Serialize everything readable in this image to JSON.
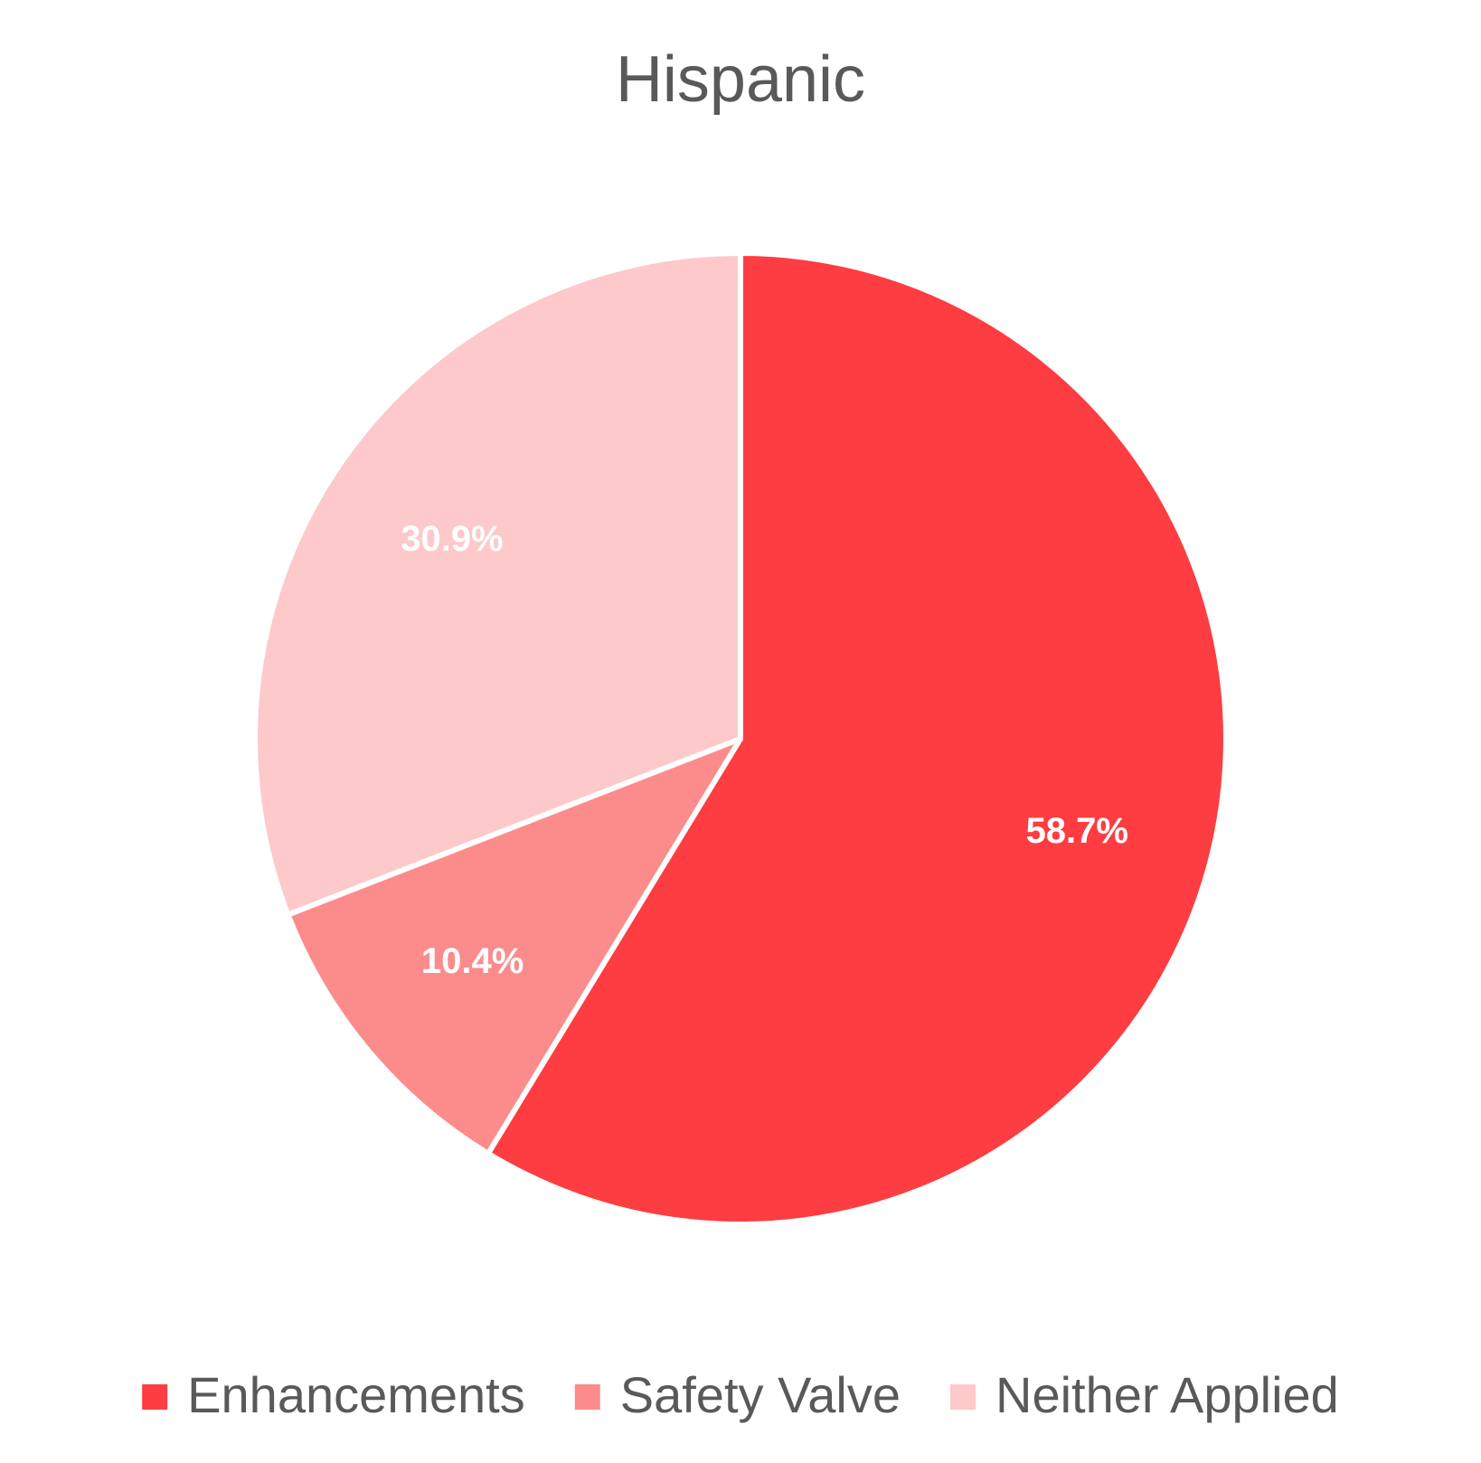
{
  "chart_data": {
    "type": "pie",
    "title": "Hispanic",
    "slices": [
      {
        "name": "Enhancements",
        "value": 58.7,
        "label": "58.7%",
        "color": "#FD3D41"
      },
      {
        "name": "Safety Valve",
        "value": 10.4,
        "label": "10.4%",
        "color": "#FC8C8C"
      },
      {
        "name": "Neither Applied",
        "value": 30.9,
        "label": "30.9%",
        "color": "#FDC9CA"
      }
    ],
    "start_angle": "12 o'clock",
    "direction": "clockwise",
    "legend": {
      "position": "bottom"
    },
    "slice_border_color": "#ffffff"
  }
}
